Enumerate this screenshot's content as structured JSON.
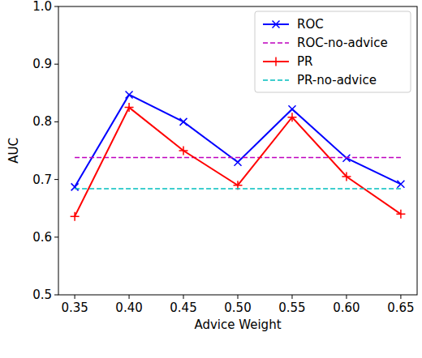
{
  "chart_data": {
    "type": "line",
    "x_label": "Advice Weight",
    "y_label": "AUC",
    "x": [
      0.35,
      0.4,
      0.45,
      0.5,
      0.55,
      0.6,
      0.65
    ],
    "series": [
      {
        "name": "ROC",
        "color": "#0000ff",
        "marker": "x",
        "line_style": "solid",
        "values": [
          0.687,
          0.847,
          0.8,
          0.73,
          0.822,
          0.737,
          0.692
        ]
      },
      {
        "name": "ROC-no-advice",
        "color": "#bf00bf",
        "marker": "none",
        "line_style": "dashed",
        "values": [
          0.738,
          0.738,
          0.738,
          0.738,
          0.738,
          0.738,
          0.738
        ]
      },
      {
        "name": "PR",
        "color": "#ff0000",
        "marker": "+",
        "line_style": "solid",
        "values": [
          0.636,
          0.825,
          0.75,
          0.69,
          0.808,
          0.705,
          0.64
        ]
      },
      {
        "name": "PR-no-advice",
        "color": "#00bfbf",
        "marker": "none",
        "line_style": "dashed",
        "values": [
          0.684,
          0.684,
          0.684,
          0.684,
          0.684,
          0.684,
          0.684
        ]
      }
    ],
    "xlim": [
      0.335,
      0.665
    ],
    "xticks": [
      0.35,
      {
        "value": 0.4,
        "label": "0.40"
      },
      0.45,
      {
        "value": 0.5,
        "label": "0.50"
      },
      0.55,
      {
        "value": 0.6,
        "label": "0.60"
      },
      0.65
    ],
    "ylim": [
      0.5,
      1.0
    ],
    "yticks": [
      0.5,
      0.6,
      0.7,
      0.8,
      0.9,
      {
        "value": 1.0,
        "label": "1.0"
      }
    ],
    "grid": false,
    "legend": "upper right"
  }
}
